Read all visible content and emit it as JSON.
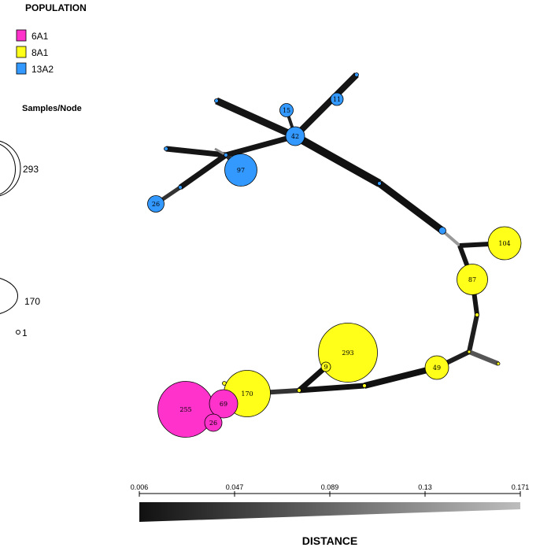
{
  "legend": {
    "title": "POPULATION",
    "items": [
      {
        "label": "6A1",
        "color": "#ff33cc"
      },
      {
        "label": "8A1",
        "color": "#ffff1a"
      },
      {
        "label": "13A2",
        "color": "#3399ff"
      }
    ]
  },
  "size_legend": {
    "title": "Samples/Node",
    "items": [
      {
        "label": "293",
        "value": 293
      },
      {
        "label": "170",
        "value": 170
      },
      {
        "label": "1",
        "value": 1
      }
    ]
  },
  "distance_scale": {
    "title": "DISTANCE",
    "ticks": [
      "0.006",
      "0.047",
      "0.089",
      "0.13",
      "0.171"
    ]
  },
  "network": {
    "nodes": [
      {
        "id": "n42",
        "label": "42",
        "color": "#3399ff"
      },
      {
        "id": "n15",
        "label": "15",
        "color": "#3399ff"
      },
      {
        "id": "n11",
        "label": "11",
        "color": "#3399ff"
      },
      {
        "id": "n97",
        "label": "97",
        "color": "#3399ff"
      },
      {
        "id": "n26b",
        "label": "26",
        "color": "#3399ff"
      },
      {
        "id": "n104",
        "label": "104",
        "color": "#ffff1a"
      },
      {
        "id": "n87",
        "label": "87",
        "color": "#ffff1a"
      },
      {
        "id": "n49",
        "label": "49",
        "color": "#ffff1a"
      },
      {
        "id": "n293",
        "label": "293",
        "color": "#ffff1a"
      },
      {
        "id": "n9",
        "label": "9",
        "color": "#ffff1a"
      },
      {
        "id": "n170",
        "label": "170",
        "color": "#ffff1a"
      },
      {
        "id": "n255",
        "label": "255",
        "color": "#ff33cc"
      },
      {
        "id": "n69",
        "label": "69",
        "color": "#ff33cc"
      },
      {
        "id": "n26p",
        "label": "26",
        "color": "#ff33cc"
      }
    ]
  }
}
